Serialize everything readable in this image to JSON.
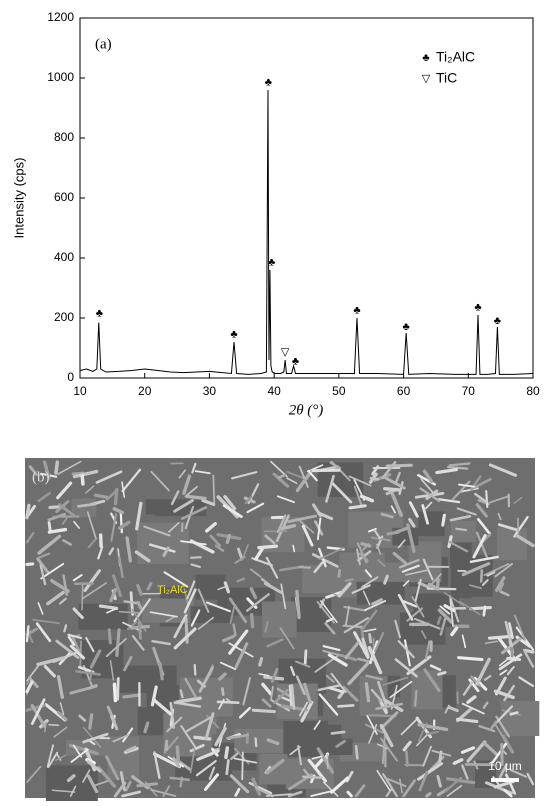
{
  "chart_data": {
    "type": "line",
    "panel_label": "(a)",
    "y_label": "Intensity (cps)",
    "x_label": "2θ (°)",
    "x": [
      10,
      11,
      12,
      12.6,
      12.9,
      13.2,
      14,
      16,
      18,
      20,
      22,
      24,
      26,
      28,
      30,
      32,
      33.4,
      33.8,
      34.2,
      36,
      38,
      38.8,
      39.05,
      39.2,
      39.35,
      39.5,
      39.7,
      40.2,
      41,
      41.5,
      41.7,
      41.9,
      42.7,
      43,
      43.3,
      46,
      50,
      52.4,
      52.8,
      53.2,
      56,
      60,
      60.4,
      60.8,
      64,
      68,
      71.2,
      71.5,
      71.8,
      73,
      74.2,
      74.5,
      74.8,
      77,
      80
    ],
    "series": [
      {
        "color": "#000000",
        "values": [
          25,
          30,
          22,
          30,
          185,
          30,
          20,
          22,
          25,
          30,
          25,
          20,
          18,
          20,
          22,
          18,
          15,
          120,
          15,
          12,
          15,
          20,
          960,
          60,
          360,
          40,
          20,
          15,
          15,
          20,
          60,
          15,
          15,
          40,
          15,
          15,
          15,
          15,
          200,
          15,
          15,
          12,
          150,
          12,
          15,
          12,
          12,
          210,
          12,
          12,
          15,
          170,
          12,
          12,
          15
        ]
      }
    ],
    "xlim": [
      10,
      80
    ],
    "xticks": [
      10,
      20,
      30,
      40,
      50,
      60,
      70,
      80
    ],
    "ylim": [
      0,
      1200
    ],
    "yticks": [
      0,
      200,
      400,
      600,
      800,
      1000,
      1200
    ],
    "annotations": [
      {
        "text": "♣",
        "x": 13,
        "y": 215
      },
      {
        "text": "♣",
        "x": 33.8,
        "y": 145
      },
      {
        "text": "♣",
        "x": 39.1,
        "y": 985
      },
      {
        "text": "♣",
        "x": 39.6,
        "y": 385
      },
      {
        "text": "▽",
        "x": 41.7,
        "y": 85
      },
      {
        "text": "♣",
        "x": 43.3,
        "y": 55
      },
      {
        "text": "♣",
        "x": 52.8,
        "y": 225
      },
      {
        "text": "♣",
        "x": 60.4,
        "y": 170
      },
      {
        "text": "♣",
        "x": 71.5,
        "y": 235
      },
      {
        "text": "♣",
        "x": 74.5,
        "y": 190
      }
    ],
    "legend": [
      {
        "symbol": "♣",
        "label": "Ti₂AlC"
      },
      {
        "symbol": "▽",
        "label": "TiC"
      }
    ]
  },
  "image": {
    "panel_label": "(b)",
    "annotation": "Ti₂AlC",
    "scale_bar": "10 μm"
  }
}
